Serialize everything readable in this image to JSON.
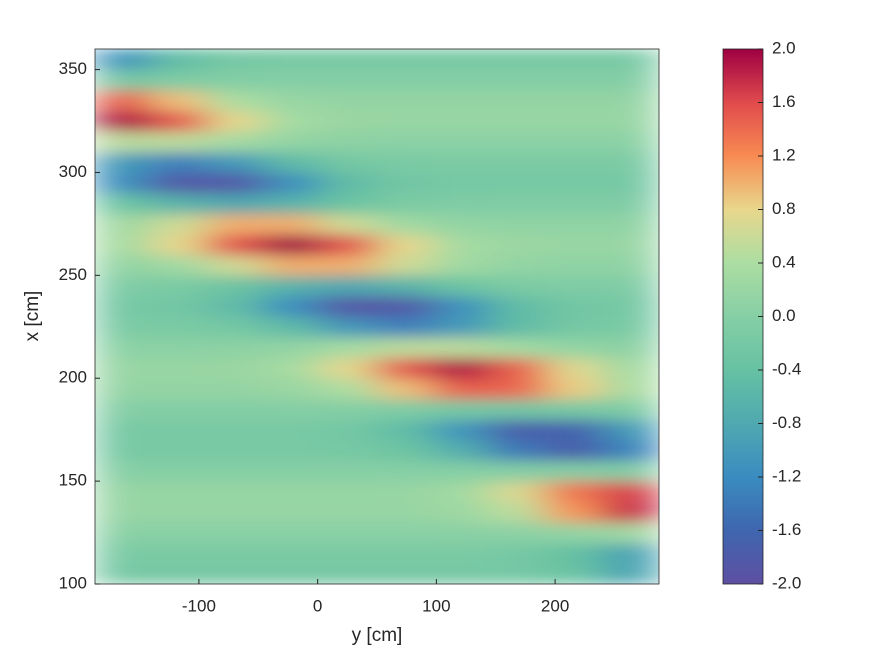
{
  "chart_data": {
    "type": "heatmap",
    "xlabel": "y [cm]",
    "ylabel": "x [cm]",
    "x": [
      -163.75,
      -116.25,
      -68.75,
      -21.25,
      26.25,
      73.75,
      121.25,
      168.75,
      216.25,
      263.75
    ],
    "y": [
      105,
      115,
      125,
      135,
      145,
      155,
      165,
      175,
      185,
      195,
      205,
      215,
      225,
      235,
      245,
      255,
      265,
      275,
      285,
      295,
      305,
      315,
      325,
      335,
      345,
      355
    ],
    "values": [
      [
        -0.19,
        -0.19,
        -0.19,
        -0.19,
        -0.19,
        -0.19,
        -0.19,
        -0.21,
        -0.35,
        -0.84
      ],
      [
        -0.15,
        -0.15,
        -0.15,
        -0.15,
        -0.15,
        -0.15,
        -0.15,
        -0.2,
        -0.41,
        -0.9
      ],
      [
        0.03,
        0.03,
        0.03,
        0.03,
        0.03,
        0.03,
        0.04,
        0.06,
        0.14,
        0.28
      ],
      [
        0.18,
        0.18,
        0.18,
        0.18,
        0.18,
        0.18,
        0.25,
        0.5,
        1.13,
        1.76
      ],
      [
        0.17,
        0.17,
        0.17,
        0.17,
        0.17,
        0.18,
        0.3,
        0.71,
        1.34,
        1.66
      ],
      [
        0,
        0,
        0,
        0,
        0,
        0,
        -0.01,
        -0.02,
        -0.03,
        -0.04
      ],
      [
        -0.17,
        -0.17,
        -0.17,
        -0.17,
        -0.19,
        -0.31,
        -0.71,
        -1.39,
        -1.72,
        -1.29
      ],
      [
        -0.18,
        -0.18,
        -0.18,
        -0.18,
        -0.24,
        -0.49,
        -1.09,
        -1.72,
        -1.66,
        -1.01
      ],
      [
        -0.02,
        -0.02,
        -0.02,
        -0.03,
        -0.04,
        -0.1,
        -0.19,
        -0.24,
        -0.18,
        -0.09
      ],
      [
        0.15,
        0.15,
        0.15,
        0.21,
        0.42,
        0.93,
        1.47,
        1.43,
        0.86,
        0.38
      ],
      [
        0.19,
        0.19,
        0.21,
        0.35,
        0.78,
        1.54,
        1.92,
        1.45,
        0.73,
        0.32
      ],
      [
        0.05,
        0.05,
        0.07,
        0.14,
        0.33,
        0.51,
        0.5,
        0.31,
        0.13,
        0.07
      ],
      [
        -0.13,
        -0.15,
        -0.24,
        -0.53,
        -1.05,
        -1.32,
        -1.01,
        -0.5,
        -0.22,
        -0.15
      ],
      [
        -0.2,
        -0.25,
        -0.51,
        -1.18,
        -1.87,
        -1.85,
        -1.13,
        -0.5,
        -0.25,
        -0.2
      ],
      [
        -0.09,
        -0.15,
        -0.33,
        -0.65,
        -0.82,
        -0.63,
        -0.32,
        -0.14,
        -0.09,
        -0.08
      ],
      [
        0.14,
        0.28,
        0.64,
        1.02,
        1.01,
        0.62,
        0.28,
        0.14,
        0.11,
        0.11
      ],
      [
        0.34,
        0.81,
        1.57,
        2.0,
        1.55,
        0.78,
        0.34,
        0.22,
        0.2,
        0.2
      ],
      [
        0.28,
        0.63,
        1.02,
        1.01,
        0.62,
        0.28,
        0.14,
        0.11,
        0.11,
        0.11
      ],
      [
        -0.32,
        -0.64,
        -0.82,
        -0.64,
        -0.32,
        -0.14,
        -0.09,
        -0.08,
        -0.08,
        -0.08
      ],
      [
        -1.16,
        -1.85,
        -1.85,
        -1.16,
        -0.5,
        -0.25,
        -0.2,
        -0.2,
        -0.2,
        -0.2
      ],
      [
        -1.02,
        -1.32,
        -1.04,
        -0.52,
        -0.22,
        -0.15,
        -0.13,
        -0.13,
        -0.13,
        -0.13
      ],
      [
        0.5,
        0.51,
        0.32,
        0.14,
        0.07,
        0.05,
        0.05,
        0.05,
        0.05,
        0.05
      ],
      [
        1.92,
        1.51,
        0.78,
        0.33,
        0.21,
        0.19,
        0.19,
        0.19,
        0.19,
        0.19
      ],
      [
        1.46,
        0.92,
        0.4,
        0.19,
        0.15,
        0.15,
        0.15,
        0.15,
        0.15,
        0.15
      ],
      [
        -0.19,
        -0.1,
        -0.04,
        -0.03,
        -0.02,
        -0.02,
        -0.02,
        -0.02,
        -0.02,
        -0.02
      ],
      [
        -1.07,
        -0.47,
        -0.23,
        -0.18,
        -0.18,
        -0.18,
        -0.18,
        -0.18,
        -0.18,
        -0.18
      ]
    ],
    "xlim": [
      -187.5,
      287.5
    ],
    "ylim": [
      100,
      360
    ],
    "xticks": [
      -100,
      0,
      100,
      200
    ],
    "yticks": [
      100,
      150,
      200,
      250,
      300,
      350
    ],
    "clim": [
      -2,
      2
    ],
    "cticks": [
      {
        "value": -2,
        "label": "-2.0"
      },
      -1.6,
      -1.2,
      -0.8,
      -0.4,
      {
        "value": 0,
        "label": "0.0"
      },
      0.4,
      0.8,
      1.2,
      1.6,
      {
        "value": 2,
        "label": "2.0"
      }
    ],
    "colormap": [
      "#5e4fa2",
      "#3f66af",
      "#3a8cc0",
      "#4fa9b0",
      "#66c1a3",
      "#86cfa5",
      "#acdda2",
      "#e8d78c",
      "#f88b52",
      "#e04a4c",
      "#9e0142"
    ]
  }
}
